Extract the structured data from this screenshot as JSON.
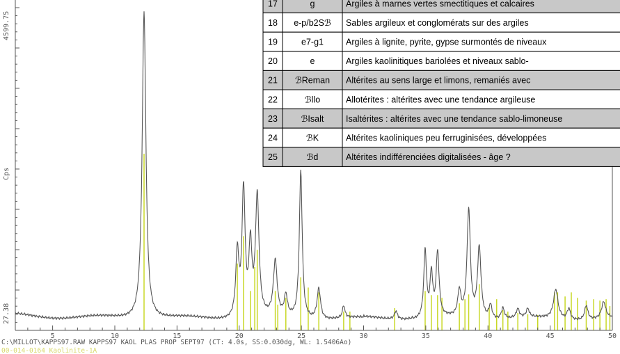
{
  "chart_data": {
    "type": "line",
    "ylabel": "Cps",
    "y_top_label": "4599.75",
    "y_bottom_label": "27.38",
    "xlim": [
      2,
      50
    ],
    "ylim": [
      27.38,
      4599.75
    ],
    "x_ticks": [
      5,
      10,
      15,
      20,
      25,
      30,
      35,
      40,
      45,
      50
    ],
    "footer_line": "C:\\MILLOT\\KAPPS97.RAW KAPPS97 KAOL PLAS PROP SEPT97 (CT:  4.0s, SS:0.030dg, WL: 1.5406Ao)",
    "footer_line2": "00-014-0164  Kaolinite-1A",
    "series": [
      {
        "color": "#555555",
        "peaks": [
          [
            12.35,
            4500,
            0.18
          ],
          [
            19.85,
            950,
            0.15
          ],
          [
            20.35,
            1850,
            0.15
          ],
          [
            20.9,
            1000,
            0.14
          ],
          [
            21.45,
            1750,
            0.17
          ],
          [
            22.9,
            800,
            0.18
          ],
          [
            23.75,
            300,
            0.15
          ],
          [
            24.95,
            2150,
            0.14
          ],
          [
            26.4,
            450,
            0.17
          ],
          [
            28.4,
            180,
            0.12
          ],
          [
            32.6,
            120,
            0.15
          ],
          [
            34.95,
            980,
            0.13
          ],
          [
            35.45,
            620,
            0.13
          ],
          [
            35.95,
            940,
            0.14
          ],
          [
            37.7,
            370,
            0.15
          ],
          [
            38.45,
            1570,
            0.16
          ],
          [
            39.3,
            1040,
            0.17
          ],
          [
            40.2,
            200,
            0.15
          ],
          [
            41.2,
            160,
            0.15
          ],
          [
            42.4,
            130,
            0.15
          ],
          [
            43.2,
            120,
            0.15
          ],
          [
            45.45,
            430,
            0.22
          ],
          [
            46.5,
            160,
            0.16
          ],
          [
            47.9,
            210,
            0.16
          ],
          [
            49.3,
            240,
            0.2
          ]
        ]
      }
    ],
    "reference_lines": {
      "color": "#c8d827",
      "x": [
        12.35,
        19.85,
        20.35,
        20.9,
        21.25,
        21.45,
        22.9,
        23.1,
        23.75,
        24.95,
        25.55,
        26.4,
        28.4,
        28.9,
        32.5,
        34.95,
        35.45,
        35.95,
        36.3,
        37.7,
        38.15,
        38.45,
        39.3,
        40.1,
        40.7,
        41.2,
        41.6,
        42.4,
        43.2,
        44.0,
        45.35,
        45.6,
        46.2,
        46.7,
        47.2,
        47.9,
        48.5,
        49.0,
        49.5,
        49.8
      ],
      "y": [
        2500,
        900,
        1300,
        500,
        850,
        1100,
        500,
        300,
        400,
        700,
        550,
        480,
        200,
        200,
        250,
        500,
        440,
        440,
        400,
        320,
        380,
        450,
        600,
        260,
        380,
        220,
        200,
        180,
        160,
        150,
        480,
        480,
        420,
        480,
        400,
        360,
        380,
        360,
        380,
        280
      ]
    }
  },
  "table": {
    "rows": [
      {
        "num": "17",
        "code": "g",
        "desc": "Argiles à marnes vertes smectitiques et calcaires",
        "shade": true
      },
      {
        "num": "18",
        "code": "e-p/b2Sℬ",
        "desc": "Sables argileux et conglomérats sur des argiles",
        "shade": false
      },
      {
        "num": "19",
        "code": "e7-g1",
        "desc": "Argiles à lignite, pyrite, gypse surmontés de niveaux",
        "shade": false
      },
      {
        "num": "20",
        "code": "e",
        "desc": "Argiles kaolinitiques bariolées et niveaux sablo-",
        "shade": false
      },
      {
        "num": "21",
        "code": "ℬReman",
        "desc": "Altérites au sens large et limons, remaniés avec",
        "shade": true
      },
      {
        "num": "22",
        "code": "ℬllo",
        "desc": "Allotérites : altérites avec une tendance argileuse",
        "shade": false
      },
      {
        "num": "23",
        "code": "ℬIsalt",
        "desc": "Isaltérites : altérites avec une tendance sablo-limoneuse",
        "shade": true
      },
      {
        "num": "24",
        "code": "ℬK",
        "desc": "Altérites kaoliniques peu ferruginisées, développées",
        "shade": false
      },
      {
        "num": "25",
        "code": "ℬd",
        "desc": "Altérites indifférenciées digitalisées - âge ?",
        "shade": true
      }
    ],
    "colors": {
      "shade": "#c8c8c8",
      "plain": "#ffffff",
      "border": "#000000"
    }
  }
}
